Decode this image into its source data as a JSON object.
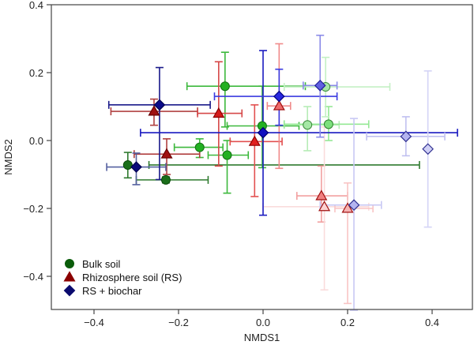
{
  "chart_data": {
    "type": "scatter",
    "title": "",
    "xlabel": "NMDS1",
    "ylabel": "NMDS2",
    "xlim": [
      -0.5,
      0.5
    ],
    "ylim": [
      -0.5,
      0.4
    ],
    "xticks": [
      -0.4,
      -0.2,
      0.0,
      0.2,
      0.4
    ],
    "xtick_labels": [
      "−0.4",
      "−0.2",
      "0.0",
      "0.2",
      "0.4"
    ],
    "yticks": [
      -0.4,
      -0.2,
      0.0,
      0.2,
      0.4
    ],
    "ytick_labels": [
      "−0.4",
      "−0.2",
      "0.0",
      "0.2",
      "0.4"
    ],
    "grid": false,
    "legend_position": "bottom-left",
    "legend": [
      {
        "name": "Bulk soil",
        "marker": "circle",
        "color": "#0a5c0a"
      },
      {
        "name": "Rhizosphere soil (RS)",
        "marker": "triangle",
        "color": "#8b0000"
      },
      {
        "name": "RS + biochar",
        "marker": "diamond",
        "color": "#0a0a6e"
      }
    ],
    "series": [
      {
        "name": "Bulk soil",
        "marker": "circle",
        "points": [
          {
            "x": -0.32,
            "y": -0.072,
            "xerr": [
              0.37,
              -0.27
            ],
            "yerr": [
              -0.11,
              -0.035
            ],
            "color": "#1a6e1a",
            "edge": "#0a4a0a",
            "line": "#2f7a2f"
          },
          {
            "x": -0.23,
            "y": -0.116,
            "xerr": [
              -0.3,
              -0.13
            ],
            "yerr": [
              -0.125,
              -0.107
            ],
            "color": "#1a6e1a",
            "edge": "#0a4a0a",
            "line": "#2f7a2f"
          },
          {
            "x": -0.15,
            "y": -0.02,
            "xerr": [
              -0.21,
              -0.095
            ],
            "yerr": [
              -0.05,
              0.005
            ],
            "color": "#22b022",
            "edge": "#137013",
            "line": "#3cb83c"
          },
          {
            "x": -0.085,
            "y": -0.043,
            "xerr": [
              -0.13,
              -0.035
            ],
            "yerr": [
              -0.155,
              0.0
            ],
            "color": "#22b022",
            "edge": "#137013",
            "line": "#3cb83c"
          },
          {
            "x": -0.09,
            "y": 0.16,
            "xerr": [
              -0.18,
              0.1
            ],
            "yerr": [
              0.04,
              0.26
            ],
            "color": "#22b022",
            "edge": "#137013",
            "line": "#3cb83c"
          },
          {
            "x": -0.002,
            "y": 0.043,
            "xerr": [
              -0.085,
              0.085
            ],
            "yerr": [
              -0.08,
              0.16
            ],
            "color": "#22b022",
            "edge": "#137013",
            "line": "#3cb83c"
          },
          {
            "x": 0.105,
            "y": 0.046,
            "xerr": [
              0.05,
              0.18
            ],
            "yerr": [
              -0.03,
              0.1
            ],
            "color": "#a6e8a6",
            "edge": "#3a8a3a",
            "line": "#b6ecb6"
          },
          {
            "x": 0.155,
            "y": 0.048,
            "xerr": [
              0.05,
              0.25
            ],
            "yerr": [
              0.0,
              0.1
            ],
            "color": "#7de07d",
            "edge": "#2f802f",
            "line": "#95e895"
          },
          {
            "x": 0.148,
            "y": 0.158,
            "xerr": [
              0.05,
              0.3
            ],
            "yerr": [
              0.07,
              0.245
            ],
            "color": "#a6e8a6",
            "edge": "#3a8a3a",
            "line": "#c4f0c4"
          }
        ]
      },
      {
        "name": "Rhizosphere soil (RS)",
        "marker": "triangle",
        "points": [
          {
            "x": -0.258,
            "y": 0.086,
            "xerr": [
              -0.36,
              -0.155
            ],
            "yerr": [
              0.045,
              0.122
            ],
            "color": "#a01010",
            "edge": "#6a0000",
            "line": "#b04040"
          },
          {
            "x": -0.228,
            "y": -0.04,
            "xerr": [
              -0.305,
              -0.15
            ],
            "yerr": [
              -0.1,
              0.005
            ],
            "color": "#a01010",
            "edge": "#6a0000",
            "line": "#b04040"
          },
          {
            "x": -0.105,
            "y": 0.08,
            "xerr": [
              -0.155,
              -0.05
            ],
            "yerr": [
              -0.075,
              0.232
            ],
            "color": "#d41a1a",
            "edge": "#8a0000",
            "line": "#d64848"
          },
          {
            "x": -0.02,
            "y": -0.003,
            "xerr": [
              -0.078,
              0.045
            ],
            "yerr": [
              -0.165,
              0.105
            ],
            "color": "#e02020",
            "edge": "#900000",
            "line": "#e25050"
          },
          {
            "x": 0.038,
            "y": 0.102,
            "xerr": [
              0.01,
              0.065
            ],
            "yerr": [
              -0.082,
              0.285
            ],
            "color": "#ee6a6a",
            "edge": "#a01010",
            "line": "#f08a8a"
          },
          {
            "x": 0.138,
            "y": -0.163,
            "xerr": [
              0.08,
              0.2
            ],
            "yerr": [
              -0.24,
              -0.075
            ],
            "color": "#f08080",
            "edge": "#a01010",
            "line": "#f2a0a0"
          },
          {
            "x": 0.145,
            "y": -0.195,
            "xerr": [
              0.0,
              0.25
            ],
            "yerr": [
              -0.44,
              0.04
            ],
            "color": "#fbd2d2",
            "edge": "#a01010",
            "line": "#fadcdc"
          },
          {
            "x": 0.2,
            "y": -0.2,
            "xerr": [
              0.17,
              0.26
            ],
            "yerr": [
              -0.48,
              -0.125
            ],
            "color": "#f6b4b4",
            "edge": "#a01010",
            "line": "#f8c4c4"
          }
        ]
      },
      {
        "name": "RS + biochar",
        "marker": "diamond",
        "points": [
          {
            "x": -0.3,
            "y": -0.078,
            "xerr": [
              -0.37,
              -0.23
            ],
            "yerr": [
              -0.13,
              -0.037
            ],
            "color": "#0a0a7a",
            "edge": "#000050",
            "line": "#5560a0"
          },
          {
            "x": -0.245,
            "y": 0.105,
            "xerr": [
              -0.365,
              -0.125
            ],
            "yerr": [
              -0.115,
              0.215
            ],
            "color": "#0a0a8a",
            "edge": "#000050",
            "line": "#1a1a8a"
          },
          {
            "x": 0.0,
            "y": 0.023,
            "xerr": [
              -0.29,
              0.46
            ],
            "yerr": [
              -0.22,
              0.265
            ],
            "color": "#1010c0",
            "edge": "#000070",
            "line": "#1a1ac0"
          },
          {
            "x": 0.038,
            "y": 0.13,
            "xerr": [
              -0.115,
              0.175
            ],
            "yerr": [
              0.045,
              0.21
            ],
            "color": "#2828e0",
            "edge": "#000080",
            "line": "#3a3ae0"
          },
          {
            "x": 0.135,
            "y": 0.162,
            "xerr": [
              0.095,
              0.175
            ],
            "yerr": [
              0.01,
              0.31
            ],
            "color": "#6060e0",
            "edge": "#20209a",
            "line": "#8a8ae8"
          },
          {
            "x": 0.338,
            "y": 0.012,
            "xerr": [
              0.245,
              0.43
            ],
            "yerr": [
              -0.045,
              0.07
            ],
            "color": "#b4b4f0",
            "edge": "#303090",
            "line": "#c0c0f0"
          },
          {
            "x": 0.39,
            "y": -0.025,
            "xerr": [
              0.39,
              0.39
            ],
            "yerr": [
              -0.255,
              0.205
            ],
            "color": "#d0d0f6",
            "edge": "#303090",
            "line": "#d4d4f6"
          },
          {
            "x": 0.215,
            "y": -0.19,
            "xerr": [
              0.135,
              0.28
            ],
            "yerr": [
              -0.5,
              0.065
            ],
            "color": "#b4b4f0",
            "edge": "#303090",
            "line": "#c8c8f4"
          }
        ]
      }
    ]
  }
}
